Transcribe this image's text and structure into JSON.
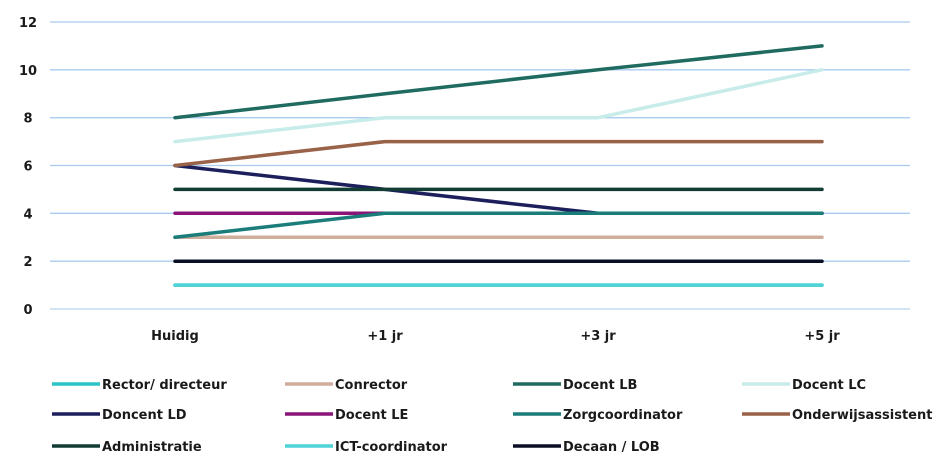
{
  "chart_data": {
    "type": "line",
    "title": "",
    "xlabel": "",
    "ylabel": "",
    "categories": [
      "Huidig",
      "+1 jr",
      "+3 jr",
      "+5 jr"
    ],
    "ylim": [
      0,
      12
    ],
    "yticks": [
      0,
      2,
      4,
      6,
      8,
      10,
      12
    ],
    "grid": true,
    "legend_position": "bottom",
    "series": [
      {
        "name": "Rector/ directeur",
        "color": "#2cc4c6",
        "values": [
          1,
          1,
          1,
          1
        ]
      },
      {
        "name": "Conrector",
        "color": "#cfae9c",
        "values": [
          3,
          3,
          3,
          3
        ]
      },
      {
        "name": "Docent LB",
        "color": "#1f6b60",
        "values": [
          8,
          9,
          10,
          11
        ]
      },
      {
        "name": "Docent LC",
        "color": "#c7ece9",
        "values": [
          7,
          8,
          8,
          10
        ]
      },
      {
        "name": "Doncent LD",
        "color": "#1c1f5c",
        "values": [
          6,
          5,
          4,
          4
        ]
      },
      {
        "name": "Docent LE",
        "color": "#8a1478",
        "values": [
          4,
          4,
          4,
          4
        ]
      },
      {
        "name": "Zorgcoordinator",
        "color": "#1b7d7a",
        "values": [
          3,
          4,
          4,
          4
        ]
      },
      {
        "name": "Onderwijsassistent",
        "color": "#9a6248",
        "values": [
          6,
          7,
          7,
          7
        ]
      },
      {
        "name": "Administratie",
        "color": "#123c34",
        "values": [
          5,
          5,
          5,
          5
        ]
      },
      {
        "name": "ICT-coordinator",
        "color": "#4fd3d6",
        "values": [
          1,
          1,
          1,
          1
        ]
      },
      {
        "name": "Decaan / LOB",
        "color": "#0a0f24",
        "values": [
          2,
          2,
          2,
          2
        ]
      }
    ]
  }
}
